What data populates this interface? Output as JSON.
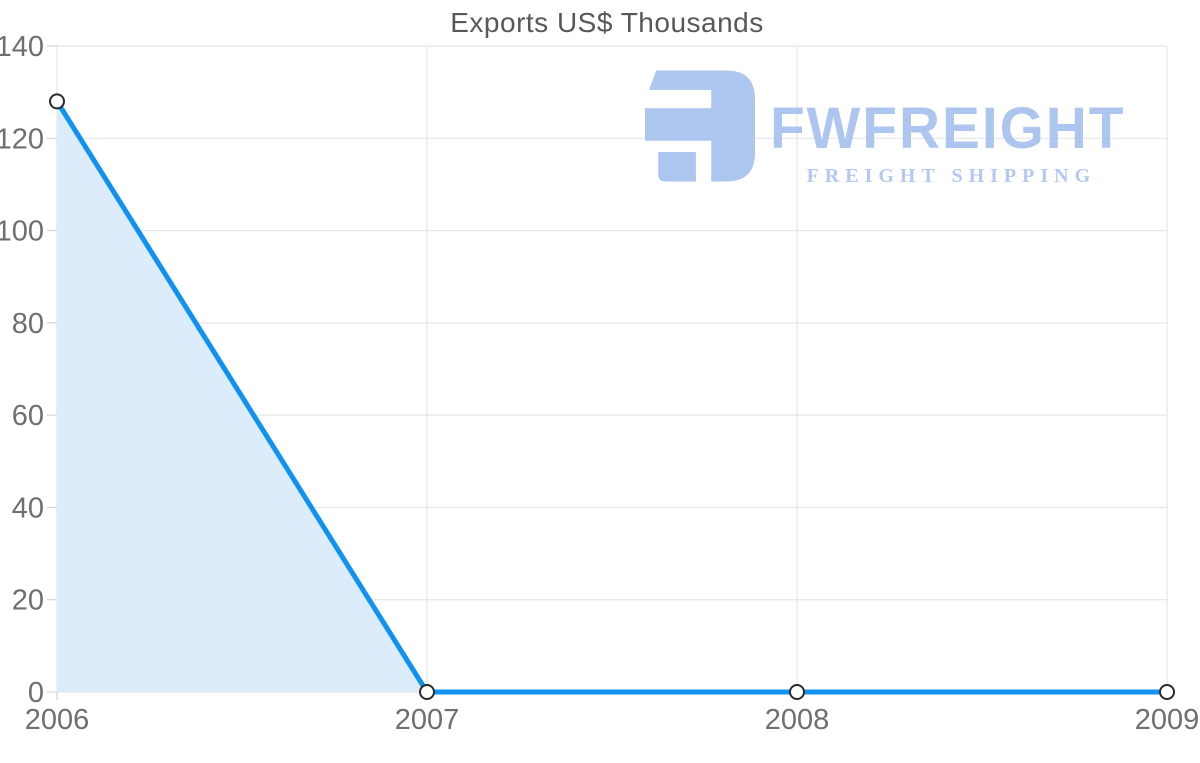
{
  "page": {
    "background": "#ffffff"
  },
  "watermark": {
    "brand": "FWFREIGHT",
    "tagline": "FREIGHT SHIPPING",
    "brand_color": "#a7c2ee",
    "tagline_color": "#aec5f0",
    "icon_color": "#a7c2ee"
  },
  "chart_data": {
    "type": "area",
    "title": "Exports US$ Thousands",
    "categories": [
      "2006",
      "2007",
      "2008",
      "2009"
    ],
    "series": [
      {
        "name": "Exports US$ Thousands",
        "values": [
          128,
          0,
          0,
          0
        ]
      }
    ],
    "xlabel": "",
    "ylabel": "",
    "ylim": [
      0,
      140
    ],
    "y_ticks": [
      0,
      20,
      40,
      60,
      80,
      100,
      120,
      140
    ],
    "grid": true,
    "legend": "none",
    "marker": "circle",
    "colors": {
      "line": "#1092f0",
      "area_fill": "#dcecfb",
      "marker_fill": "#ffffff",
      "marker_stroke": "#2b2b2b",
      "grid": "#e2e2e2",
      "tick": "#cccccc",
      "axis_label": "#6f6f6f",
      "title": "#57585a"
    }
  }
}
